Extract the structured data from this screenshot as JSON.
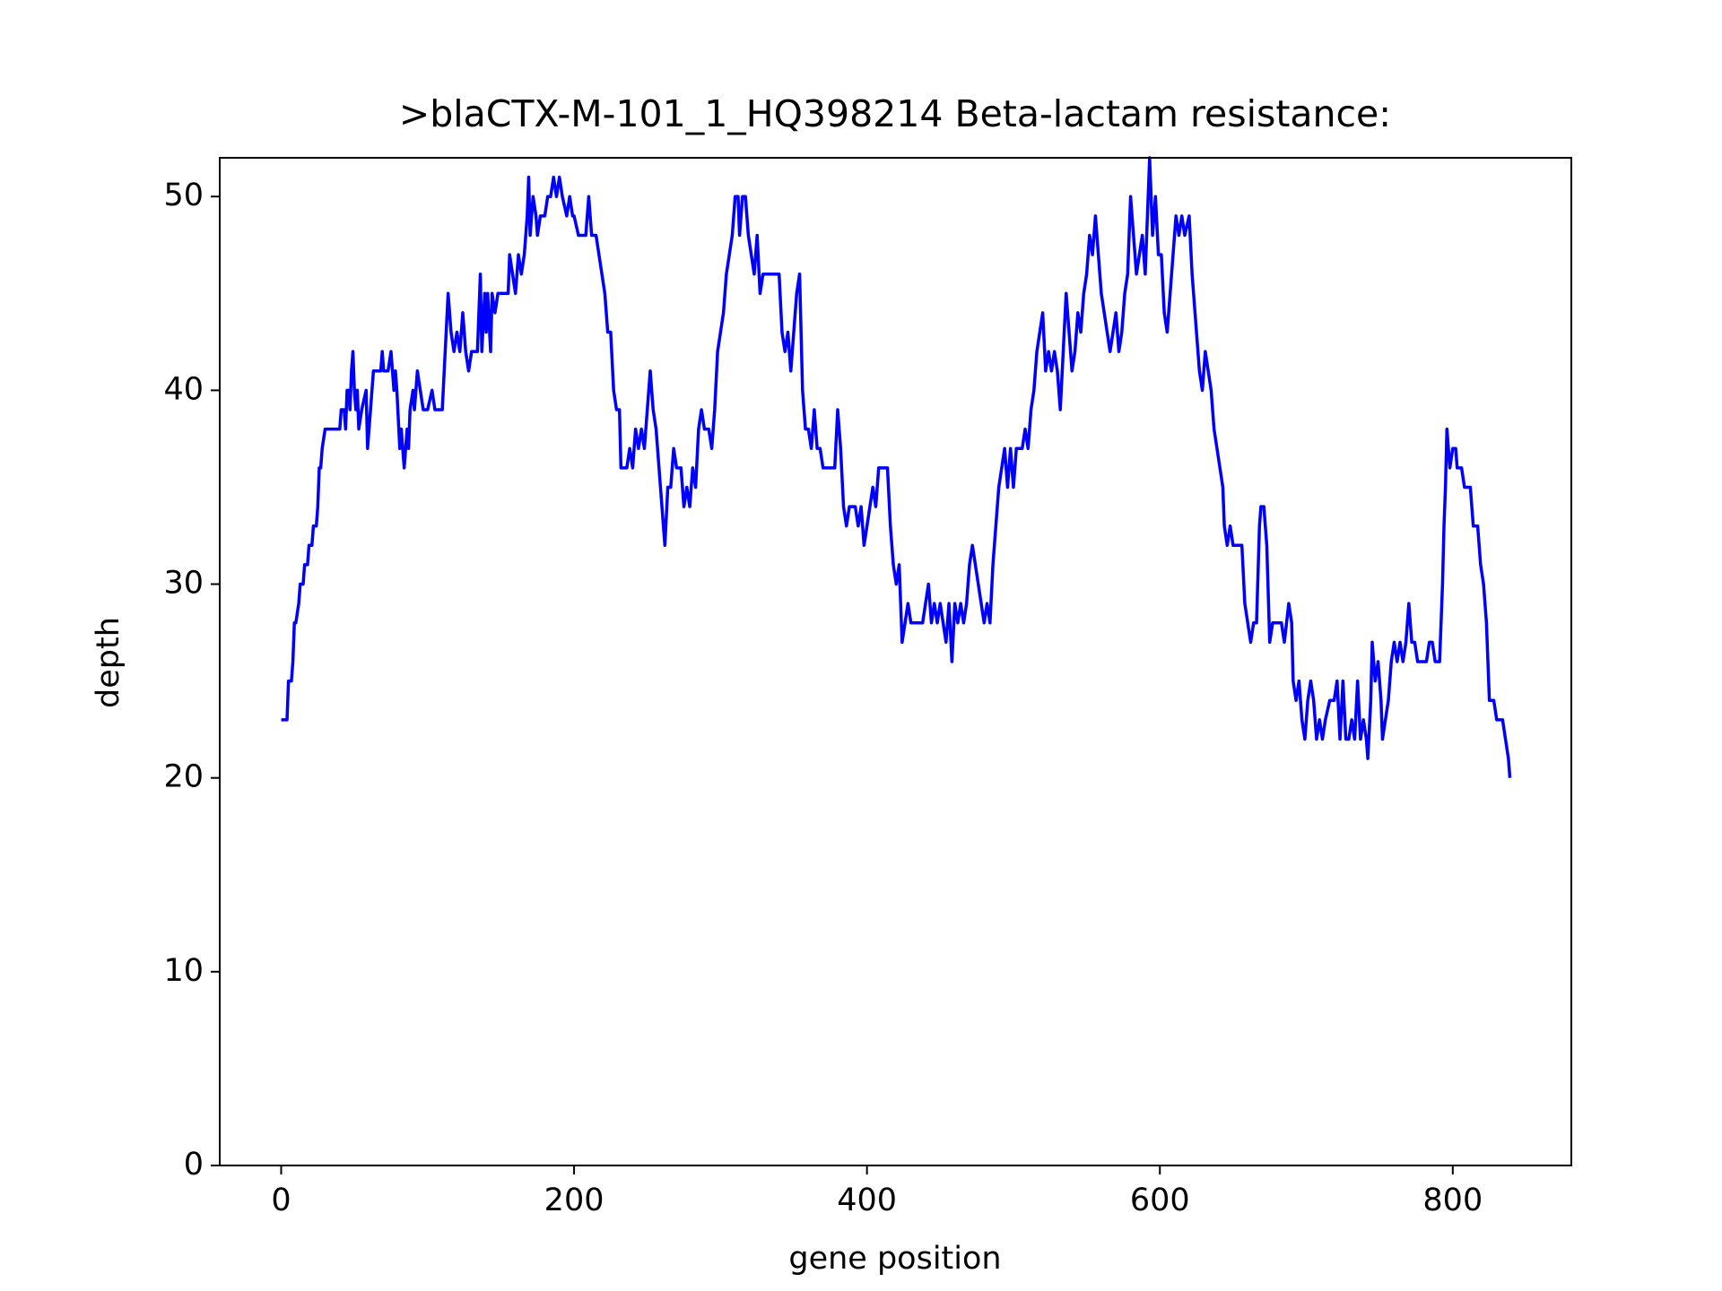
{
  "chart_data": {
    "type": "line",
    "title": ">blaCTX-M-101_1_HQ398214 Beta-lactam resistance:",
    "x_label": "gene position",
    "y_label": "depth",
    "xlim": [
      -41.95,
      880.95
    ],
    "ylim": [
      0,
      52
    ],
    "xticks": [
      0,
      200,
      400,
      600,
      800
    ],
    "yticks": [
      0,
      10,
      20,
      30,
      40,
      50
    ],
    "grid": false,
    "series": [
      {
        "color": "#0000ff",
        "x": [
          0,
          4,
          5,
          7,
          8,
          9,
          10,
          12,
          13,
          15,
          16,
          18,
          19,
          21,
          22,
          24,
          25,
          26,
          27,
          28,
          30,
          37,
          40,
          41,
          43,
          44,
          45,
          46,
          47,
          48,
          49,
          50,
          51,
          52,
          53,
          55,
          58,
          59,
          61,
          63,
          68,
          69,
          70,
          73,
          75,
          76,
          77,
          78,
          79,
          81,
          82,
          84,
          86,
          87,
          88,
          90,
          91,
          93,
          95,
          97,
          100,
          103,
          105,
          110,
          112,
          114,
          116,
          118,
          120,
          122,
          124,
          126,
          128,
          130,
          134,
          136,
          137,
          139,
          140,
          141,
          143,
          144,
          146,
          148,
          155,
          156,
          158,
          160,
          162,
          164,
          166,
          168,
          169,
          170,
          172,
          174,
          175,
          177,
          180,
          182,
          184,
          186,
          188,
          190,
          192,
          195,
          197,
          199,
          200,
          203,
          208,
          210,
          212,
          215,
          217,
          219,
          221,
          223,
          225,
          227,
          229,
          231,
          232,
          236,
          238,
          240,
          242,
          244,
          246,
          248,
          250,
          252,
          254,
          256,
          258,
          259,
          261,
          262,
          264,
          266,
          268,
          270,
          273,
          275,
          277,
          279,
          281,
          283,
          285,
          287,
          289,
          292,
          294,
          296,
          298,
          300,
          302,
          304,
          306,
          308,
          310,
          312,
          313,
          315,
          317,
          319,
          321,
          323,
          325,
          327,
          329,
          340,
          342,
          344,
          346,
          348,
          350,
          352,
          354,
          356,
          358,
          360,
          362,
          364,
          366,
          368,
          370,
          378,
          380,
          382,
          384,
          386,
          388,
          392,
          394,
          396,
          398,
          400,
          402,
          404,
          406,
          408,
          414,
          416,
          418,
          420,
          422,
          424,
          426,
          428,
          430,
          438,
          440,
          442,
          444,
          446,
          448,
          450,
          452,
          454,
          456,
          458,
          460,
          462,
          464,
          466,
          468,
          470,
          472,
          474,
          476,
          478,
          480,
          482,
          484,
          486,
          488,
          490,
          492,
          494,
          496,
          498,
          500,
          502,
          506,
          508,
          510,
          512,
          514,
          516,
          518,
          520,
          522,
          524,
          526,
          528,
          530,
          532,
          534,
          536,
          538,
          540,
          542,
          544,
          546,
          548,
          550,
          552,
          554,
          556,
          558,
          560,
          562,
          564,
          566,
          568,
          570,
          572,
          574,
          576,
          578,
          580,
          582,
          584,
          586,
          588,
          590,
          592,
          593,
          595,
          597,
          599,
          601,
          603,
          605,
          607,
          609,
          611,
          613,
          615,
          617,
          620,
          622,
          624,
          626,
          627,
          629,
          631,
          633,
          635,
          637,
          639,
          641,
          643,
          644,
          646,
          648,
          650,
          656,
          658,
          660,
          662,
          664,
          666,
          668,
          669,
          671,
          673,
          675,
          677,
          683,
          685,
          688,
          690,
          691,
          693,
          695,
          697,
          699,
          701,
          703,
          705,
          707,
          709,
          711,
          713,
          716,
          719,
          721,
          723,
          725,
          727,
          729,
          731,
          733,
          735,
          737,
          739,
          741,
          742,
          744,
          745,
          747,
          749,
          751,
          752,
          754,
          756,
          758,
          760,
          762,
          764,
          766,
          768,
          770,
          772,
          774,
          776,
          782,
          784,
          786,
          788,
          791,
          793,
          794,
          795,
          796,
          797,
          798,
          800,
          802,
          803,
          806,
          808,
          812,
          814,
          817,
          819,
          821,
          823,
          825,
          828,
          830,
          834,
          836,
          838,
          839
        ],
        "values": [
          23,
          23,
          25,
          25,
          26,
          28,
          28,
          29,
          30,
          30,
          31,
          31,
          32,
          32,
          33,
          33,
          34,
          36,
          36,
          37,
          38,
          38,
          38,
          39,
          39,
          38,
          40,
          40,
          39,
          41,
          42,
          40,
          39,
          40,
          38,
          39,
          40,
          37,
          39,
          41,
          41,
          42,
          41,
          41,
          42,
          41,
          40,
          41,
          40,
          37,
          38,
          36,
          38,
          37,
          39,
          40,
          39,
          41,
          40,
          39,
          39,
          40,
          39,
          39,
          42,
          45,
          43,
          42,
          43,
          42,
          44,
          42,
          41,
          42,
          42,
          46,
          42,
          45,
          43,
          45,
          42,
          45,
          44,
          45,
          45,
          47,
          46,
          45,
          47,
          46,
          47,
          49,
          51,
          48,
          50,
          49,
          48,
          49,
          49,
          50,
          50,
          51,
          50,
          51,
          50,
          49,
          50,
          49,
          49,
          48,
          48,
          50,
          48,
          48,
          47,
          46,
          45,
          43,
          43,
          40,
          39,
          39,
          36,
          36,
          37,
          36,
          38,
          37,
          38,
          37,
          39,
          41,
          39,
          38,
          36,
          35,
          33,
          32,
          35,
          35,
          37,
          36,
          36,
          34,
          35,
          34,
          36,
          35,
          38,
          39,
          38,
          38,
          37,
          39,
          42,
          43,
          44,
          46,
          47,
          48,
          50,
          50,
          48,
          50,
          50,
          48,
          47,
          46,
          48,
          45,
          46,
          46,
          43,
          42,
          43,
          41,
          43,
          45,
          46,
          40,
          38,
          38,
          37,
          39,
          37,
          37,
          36,
          36,
          39,
          37,
          34,
          33,
          34,
          34,
          33,
          34,
          32,
          33,
          34,
          35,
          34,
          36,
          36,
          33,
          31,
          30,
          31,
          27,
          28,
          29,
          28,
          28,
          29,
          30,
          28,
          29,
          28,
          29,
          28,
          27,
          29,
          26,
          29,
          28,
          29,
          28,
          29,
          31,
          32,
          31,
          30,
          29,
          28,
          29,
          28,
          31,
          33,
          35,
          36,
          37,
          35,
          37,
          35,
          37,
          37,
          38,
          37,
          39,
          40,
          42,
          43,
          44,
          41,
          42,
          41,
          42,
          41,
          39,
          42,
          45,
          43,
          41,
          42,
          44,
          43,
          45,
          46,
          48,
          47,
          49,
          47,
          45,
          44,
          43,
          42,
          43,
          44,
          42,
          43,
          45,
          46,
          50,
          48,
          46,
          47,
          48,
          46,
          50,
          52,
          48,
          50,
          47,
          47,
          44,
          43,
          45,
          47,
          49,
          48,
          49,
          48,
          49,
          46,
          44,
          42,
          41,
          40,
          42,
          41,
          40,
          38,
          37,
          36,
          35,
          33,
          32,
          33,
          32,
          32,
          29,
          28,
          27,
          28,
          28,
          33,
          34,
          34,
          32,
          27,
          28,
          28,
          27,
          29,
          28,
          25,
          24,
          25,
          23,
          22,
          24,
          25,
          24,
          22,
          23,
          22,
          23,
          24,
          24,
          25,
          22,
          25,
          22,
          22,
          23,
          22,
          25,
          22,
          23,
          22,
          21,
          24,
          27,
          25,
          26,
          24,
          22,
          23,
          24,
          26,
          27,
          26,
          27,
          26,
          27,
          29,
          27,
          27,
          26,
          26,
          27,
          27,
          26,
          26,
          30,
          33,
          35,
          38,
          37,
          36,
          37,
          37,
          36,
          36,
          35,
          35,
          33,
          33,
          31,
          30,
          28,
          24,
          24,
          23,
          23,
          22,
          21,
          20
        ]
      }
    ]
  }
}
